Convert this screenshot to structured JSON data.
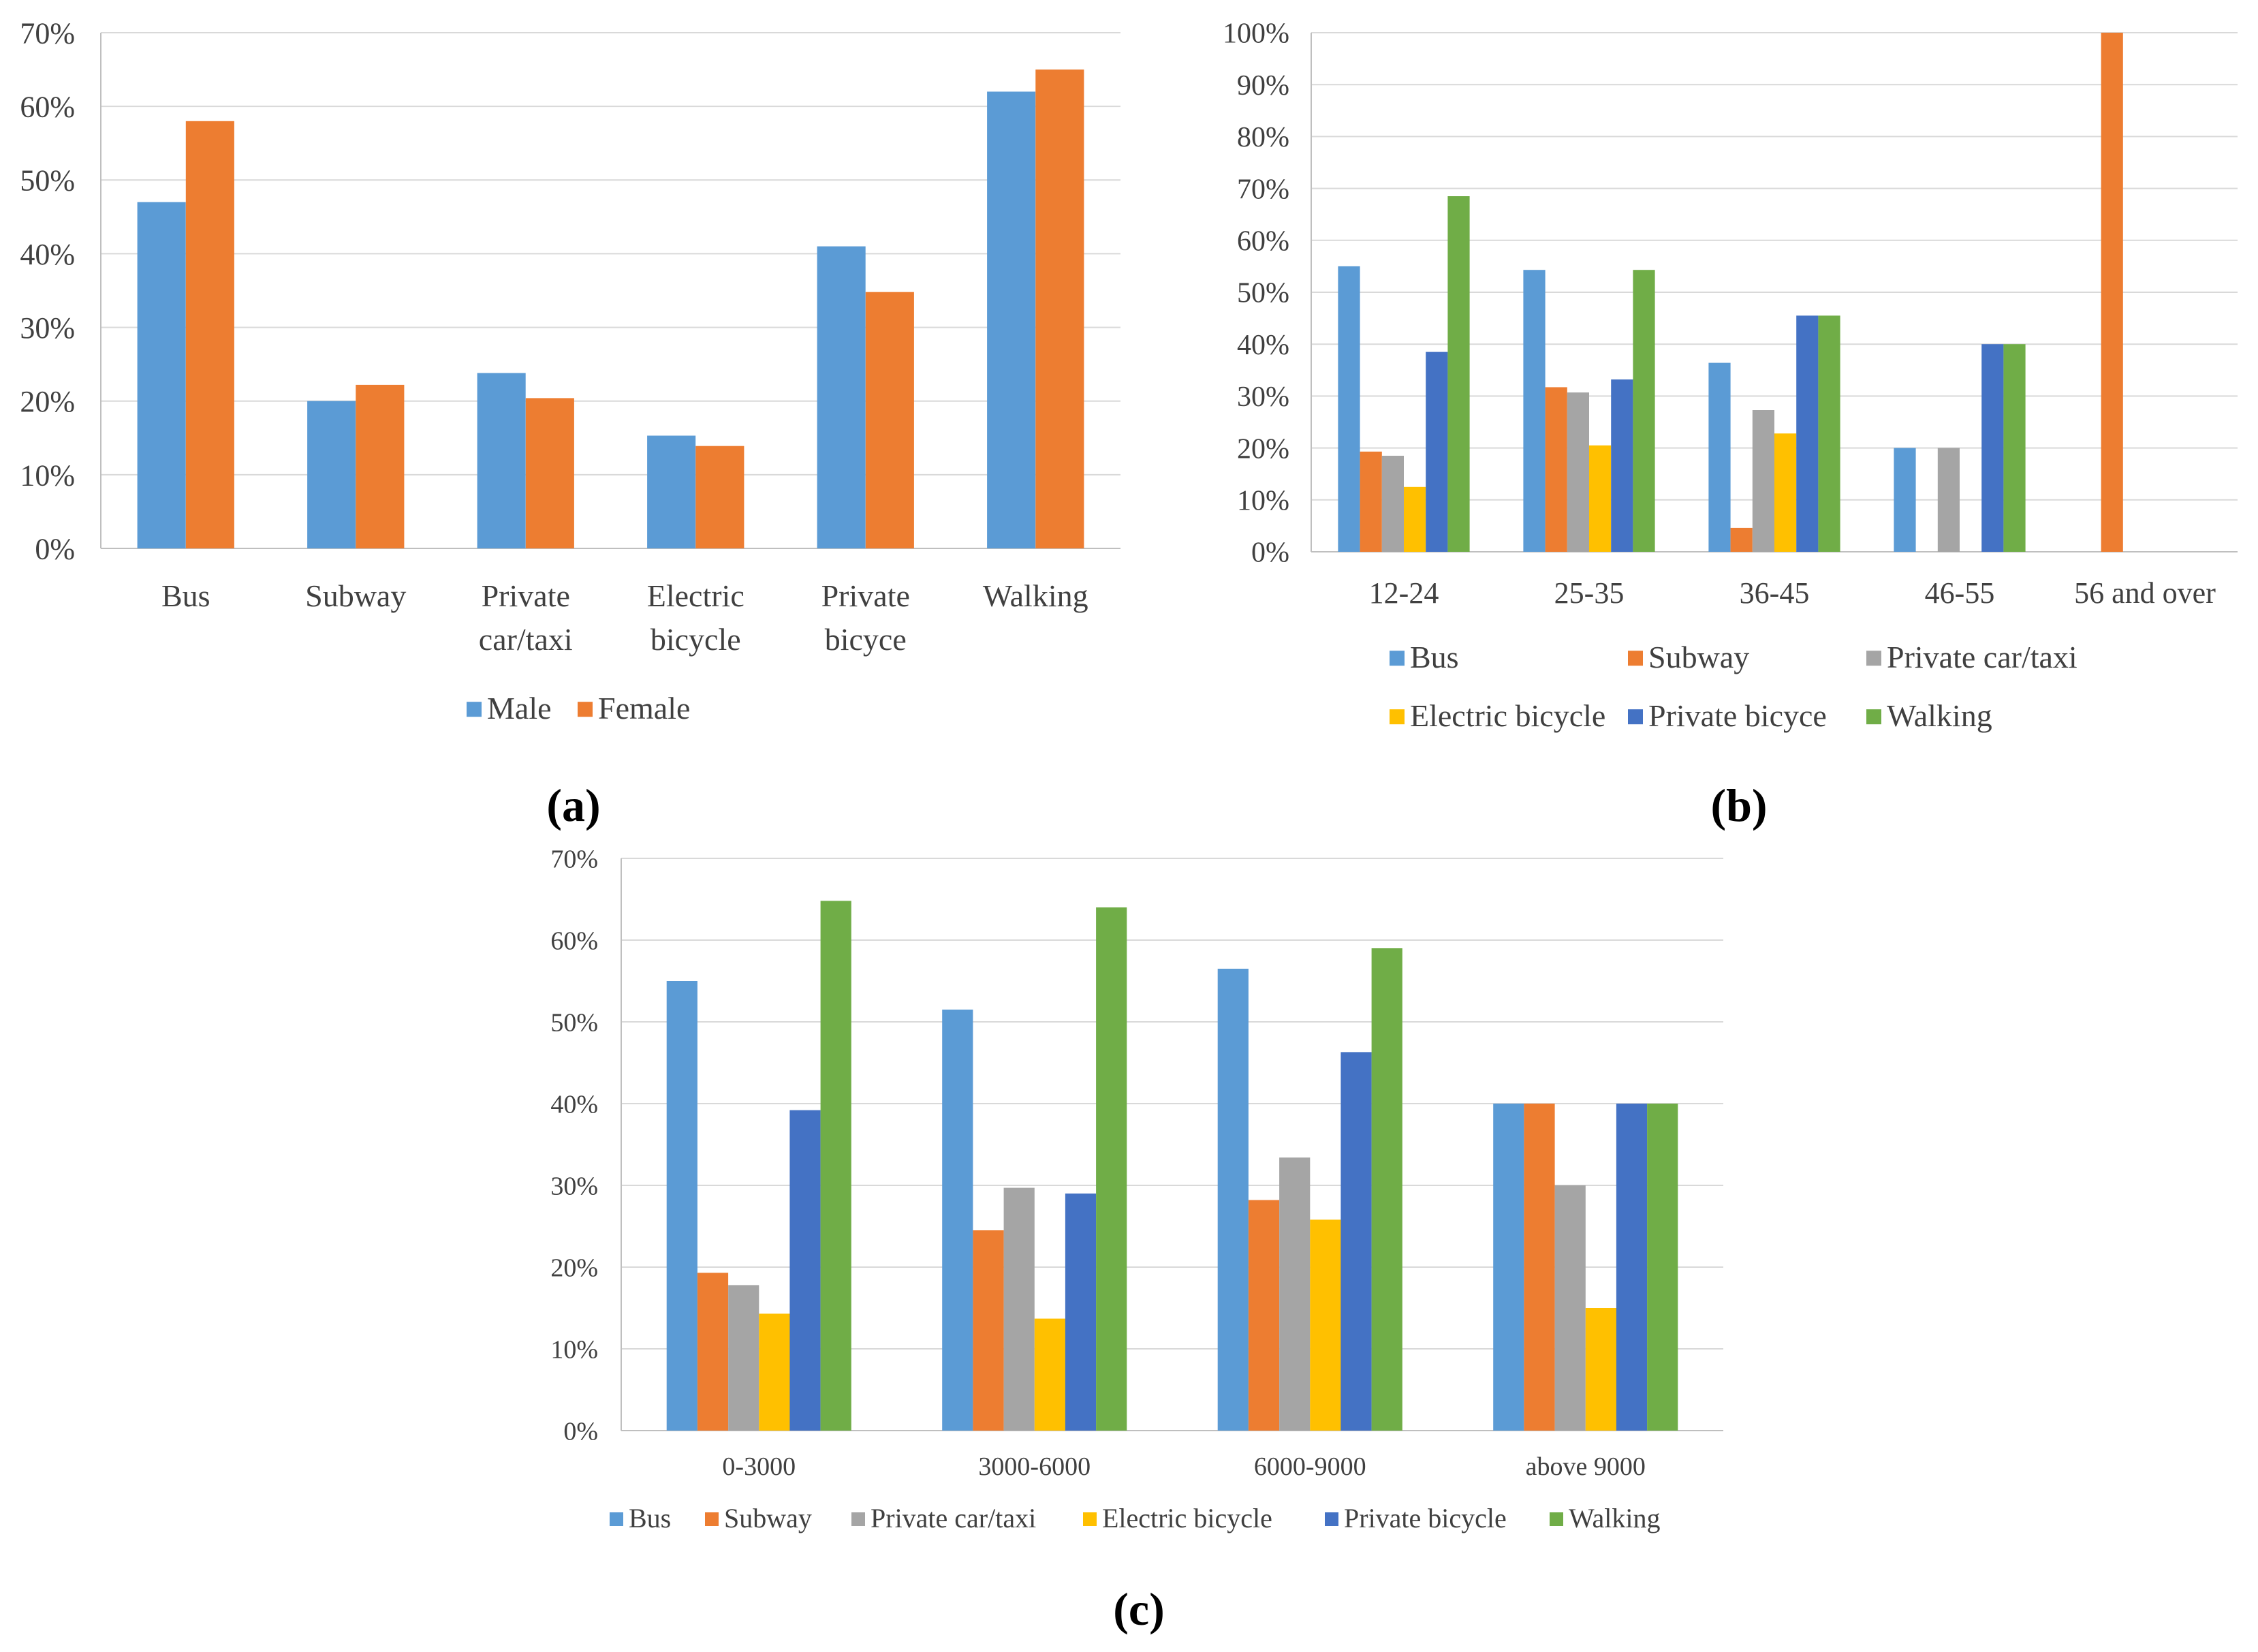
{
  "colors": {
    "bus": "#5b9bd5",
    "subway": "#ed7d31",
    "private_car_taxi": "#a5a5a5",
    "electric_bicycle": "#ffc000",
    "private_bicycle": "#4472c4",
    "walking": "#70ad47",
    "male": "#5b9bd5",
    "female": "#ed7d31"
  },
  "chart_data": [
    {
      "panel": "(a)",
      "type": "bar",
      "categories": [
        "Bus",
        "Subway",
        "Private car/taxi",
        "Electric bicycle",
        "Private bicyce",
        "Walking"
      ],
      "category_lines": [
        [
          "Bus"
        ],
        [
          "Subway"
        ],
        [
          "Private",
          "car/taxi"
        ],
        [
          "Electric",
          "bicycle"
        ],
        [
          "Private",
          "bicyce"
        ],
        [
          "Walking"
        ]
      ],
      "series": [
        {
          "name": "Male",
          "values": [
            47,
            20,
            23.8,
            15.3,
            41,
            62
          ]
        },
        {
          "name": "Female",
          "values": [
            58,
            22.2,
            20.4,
            13.9,
            34.8,
            65
          ]
        }
      ],
      "yticks": [
        "0%",
        "10%",
        "20%",
        "30%",
        "40%",
        "50%",
        "60%",
        "70%"
      ],
      "ylim": [
        0,
        70
      ],
      "grid": true,
      "legend_position": "bottom",
      "title": "",
      "xlabel": "",
      "ylabel": ""
    },
    {
      "panel": "(b)",
      "type": "bar",
      "categories": [
        "12-24",
        "25-35",
        "36-45",
        "46-55",
        "56 and over"
      ],
      "series": [
        {
          "name": "Bus",
          "values": [
            55,
            54.3,
            36.4,
            20,
            0
          ]
        },
        {
          "name": "Subway",
          "values": [
            19.3,
            31.7,
            4.6,
            0,
            100
          ]
        },
        {
          "name": "Private car/taxi",
          "values": [
            18.5,
            30.7,
            27.3,
            20,
            0
          ]
        },
        {
          "name": "Electric bicycle",
          "values": [
            12.5,
            20.5,
            22.8,
            0,
            0
          ]
        },
        {
          "name": "Private bicyce",
          "values": [
            38.5,
            33.2,
            45.5,
            40,
            0
          ]
        },
        {
          "name": "Walking",
          "values": [
            68.5,
            54.3,
            45.5,
            40,
            0
          ]
        }
      ],
      "yticks": [
        "0%",
        "10%",
        "20%",
        "30%",
        "40%",
        "50%",
        "60%",
        "70%",
        "80%",
        "90%",
        "100%"
      ],
      "ylim": [
        0,
        100
      ],
      "grid": true,
      "legend_position": "bottom",
      "title": "",
      "xlabel": "",
      "ylabel": ""
    },
    {
      "panel": "(c)",
      "type": "bar",
      "categories": [
        "0-3000",
        "3000-6000",
        "6000-9000",
        "above 9000"
      ],
      "series": [
        {
          "name": "Bus",
          "values": [
            55,
            51.5,
            56.5,
            40
          ]
        },
        {
          "name": "Subway",
          "values": [
            19.3,
            24.5,
            28.2,
            40
          ]
        },
        {
          "name": "Private car/taxi",
          "values": [
            17.8,
            29.7,
            33.4,
            30
          ]
        },
        {
          "name": "Electric bicycle",
          "values": [
            14.3,
            13.7,
            25.8,
            15
          ]
        },
        {
          "name": "Private bicycle",
          "values": [
            39.2,
            29,
            46.3,
            40
          ]
        },
        {
          "name": "Walking",
          "values": [
            64.8,
            64,
            59,
            40
          ]
        }
      ],
      "yticks": [
        "0%",
        "10%",
        "20%",
        "30%",
        "40%",
        "50%",
        "60%",
        "70%"
      ],
      "ylim": [
        0,
        70
      ],
      "grid": true,
      "legend_position": "bottom",
      "title": "",
      "xlabel": "",
      "ylabel": ""
    }
  ]
}
